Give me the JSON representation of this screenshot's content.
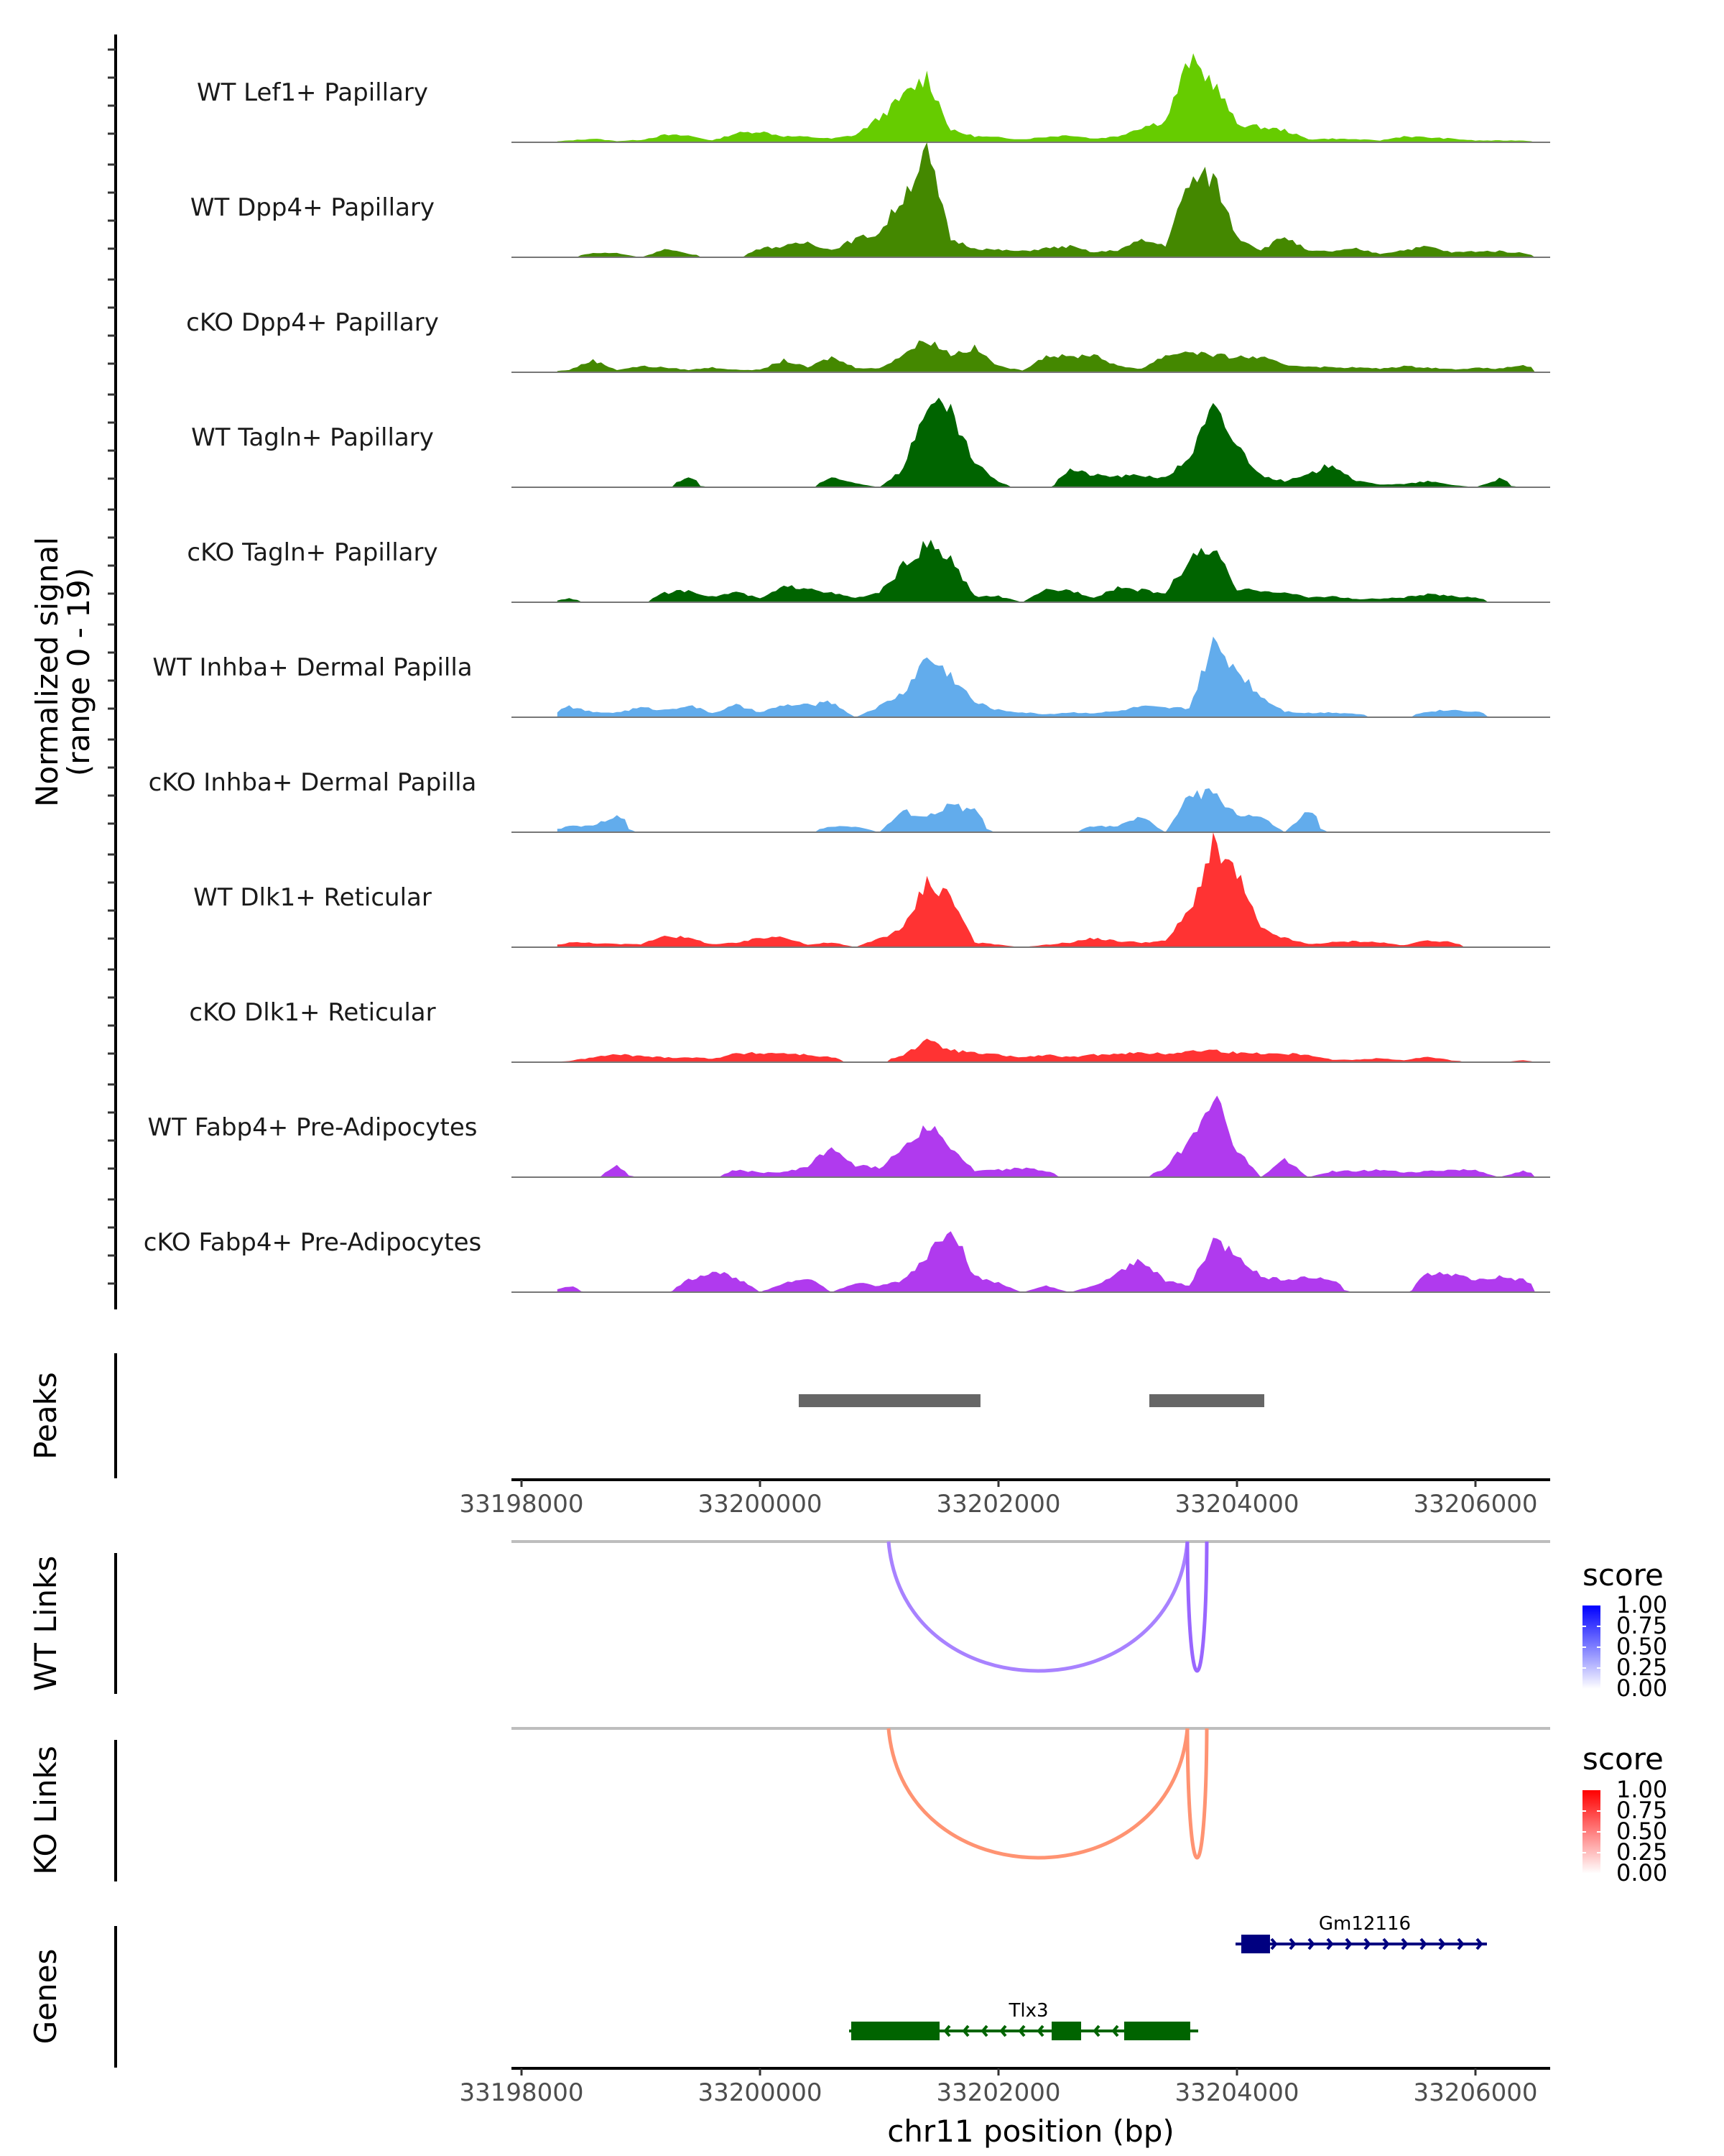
{
  "chart_data": {
    "type": "area",
    "title": "",
    "region": "chr11:33197900-33206100",
    "xlabel": "chr11 position (bp)",
    "xlim": [
      33197900,
      33206100
    ],
    "x_ticks": [
      33198000,
      33200000,
      33202000,
      33204000,
      33206000
    ],
    "x_tick_labels": [
      "33198000",
      "33200000",
      "33202000",
      "33204000",
      "33206000"
    ],
    "coverage": {
      "ylabel_line1": "Normalized signal",
      "ylabel_line2": "(range 0 - 19)",
      "ylim": [
        0,
        19
      ],
      "bin_start": 33198400,
      "bin_size": 200,
      "tracks": [
        {
          "name": "WT Lef1+ Papillary",
          "color": "#66CC00",
          "values": [
            0.3,
            0.6,
            0.2,
            0.4,
            1.2,
            1.1,
            0.3,
            1.5,
            1.8,
            1.0,
            0.9,
            0.6,
            1.2,
            4.0,
            7.5,
            11.0,
            2.0,
            1.0,
            0.8,
            0.5,
            0.9,
            1.2,
            0.6,
            1.0,
            2.5,
            3.5,
            13.5,
            10.0,
            3.0,
            2.5,
            2.0,
            0.5,
            0.6,
            0.5,
            0.3,
            1.0,
            0.8,
            0.6,
            0.3,
            0.3,
            0.3
          ]
        },
        {
          "name": "WT Dpp4+ Papillary",
          "color": "#448800",
          "values": [
            0,
            0.7,
            0.7,
            0,
            1.3,
            0.6,
            0,
            0,
            1.5,
            1.8,
            2.5,
            1.2,
            3.0,
            4.0,
            10.0,
            17.5,
            3.0,
            1.5,
            1.2,
            1.0,
            1.5,
            1.8,
            0.8,
            1.2,
            2.8,
            2.0,
            12.5,
            13.5,
            3.5,
            1.2,
            3.5,
            1.0,
            1.0,
            1.4,
            0.6,
            1.2,
            1.8,
            0.8,
            1.0,
            1.0,
            0.7
          ]
        },
        {
          "name": "cKO Dpp4+ Papillary",
          "color": "#448800",
          "values": [
            0.4,
            2.0,
            0.4,
            1.0,
            0.8,
            0.4,
            0.8,
            0.4,
            0.4,
            2.0,
            0.8,
            2.5,
            0.8,
            0.6,
            3.0,
            5.5,
            3.0,
            4.0,
            1.0,
            0.3,
            2.8,
            2.5,
            3.0,
            1.0,
            0.6,
            2.8,
            3.5,
            2.8,
            2.5,
            2.5,
            1.2,
            1.0,
            0.8,
            0.8,
            0.6,
            1.0,
            0.8,
            0.5,
            0.7,
            0.6,
            1.2
          ]
        },
        {
          "name": "WT Tagln+ Papillary",
          "color": "#006400",
          "values": [
            0,
            0,
            0,
            0,
            0,
            1.5,
            0,
            0,
            0,
            0,
            0,
            1.5,
            0.7,
            0,
            3.0,
            14.0,
            12.0,
            4.0,
            0.8,
            0,
            0,
            3.0,
            2.0,
            1.8,
            2.0,
            1.5,
            5.0,
            13.0,
            7.0,
            2.0,
            1.0,
            2.0,
            4.0,
            1.0,
            0.5,
            0.5,
            1.0,
            0.4,
            0,
            1.4,
            0
          ]
        },
        {
          "name": "cKO Tagln+ Papillary",
          "color": "#006400",
          "values": [
            0.6,
            0,
            0,
            0,
            1.5,
            2.0,
            0.9,
            1.7,
            0.6,
            2.5,
            2.5,
            1.5,
            0.7,
            1.5,
            6.0,
            9.5,
            7.0,
            1.0,
            1.0,
            0,
            2.0,
            2.0,
            0.8,
            2.5,
            2.0,
            1.5,
            7.0,
            9.0,
            2.0,
            2.0,
            1.6,
            0.8,
            1.0,
            0.5,
            0.6,
            0.8,
            1.3,
            1.0,
            0.8,
            0,
            0
          ]
        },
        {
          "name": "WT Inhba+ Dermal Papilla",
          "color": "#62ACEC",
          "values": [
            1.8,
            0.8,
            0.8,
            1.6,
            1.2,
            2.0,
            0.7,
            2.0,
            0.8,
            2.0,
            2.0,
            2.5,
            0,
            1.8,
            4.0,
            10.0,
            7.0,
            2.5,
            1.2,
            0.8,
            0.5,
            0.8,
            0.7,
            1.0,
            1.8,
            1.5,
            1.5,
            12.0,
            8.0,
            3.5,
            1.0,
            0.7,
            0.8,
            0.6,
            0,
            0,
            1.0,
            1.2,
            1.0,
            0,
            0
          ]
        },
        {
          "name": "cKO Inhba+ Dermal Papilla",
          "color": "#62ACEC",
          "values": [
            1.0,
            1.0,
            3.0,
            0,
            0,
            0,
            0,
            0,
            0,
            0,
            0,
            1.0,
            1.0,
            0,
            3.5,
            2.5,
            4.5,
            3.5,
            0,
            0,
            0,
            0,
            1.0,
            1.0,
            2.5,
            0,
            6.0,
            6.5,
            3.0,
            2.5,
            0,
            3.5,
            0,
            0,
            0,
            0,
            0,
            0,
            0,
            0,
            0
          ]
        },
        {
          "name": "WT Dlk1+ Reticular",
          "color": "#FF3333",
          "values": [
            0.8,
            0.7,
            0.5,
            0.5,
            2.0,
            1.5,
            0.5,
            0.7,
            1.5,
            1.8,
            0.4,
            0.8,
            0,
            1.5,
            3.0,
            11.0,
            8.5,
            0.8,
            0.4,
            0,
            0.4,
            0.8,
            1.5,
            1.0,
            0.8,
            1.0,
            6.0,
            16.5,
            12.0,
            3.0,
            1.5,
            0.5,
            0.8,
            1.0,
            0.8,
            0.3,
            1.2,
            0.8,
            0,
            0,
            0
          ]
        },
        {
          "name": "cKO Dlk1+ Reticular",
          "color": "#FF3333",
          "values": [
            0.2,
            0.8,
            1.3,
            1.0,
            0.8,
            0.8,
            0.6,
            1.4,
            1.5,
            1.5,
            1.2,
            0.8,
            0,
            0,
            1.2,
            3.5,
            2.0,
            1.5,
            1.2,
            0.8,
            1.2,
            0.8,
            1.2,
            1.5,
            1.5,
            1.4,
            1.8,
            2.0,
            1.5,
            1.5,
            1.4,
            1.3,
            0.4,
            0.4,
            0.7,
            0.3,
            0.9,
            0.3,
            0,
            0,
            0.3
          ]
        },
        {
          "name": "WT Fabp4+ Pre-Adipocytes",
          "color": "#B03AEE",
          "values": [
            0,
            0,
            1.8,
            0,
            0,
            0,
            0,
            1.2,
            0.8,
            0.8,
            1.8,
            5.0,
            2.0,
            1.5,
            5.0,
            9.0,
            5.0,
            1.0,
            1.2,
            1.5,
            1.0,
            0,
            0,
            0,
            0,
            1.5,
            6.0,
            14.0,
            4.5,
            0,
            3.0,
            0,
            1.0,
            1.0,
            1.2,
            0.8,
            1.0,
            1.2,
            1.2,
            0,
            1.0
          ]
        },
        {
          "name": "cKO Fabp4+ Pre-Adipocytes",
          "color": "#B03AEE",
          "values": [
            1.0,
            0,
            0,
            0,
            0,
            2.0,
            3.5,
            2.5,
            0,
            1.5,
            2.5,
            0,
            1.5,
            1.0,
            2.0,
            6.0,
            11.5,
            2.5,
            1.5,
            0,
            1.0,
            0,
            1.0,
            3.0,
            5.5,
            2.0,
            1.0,
            8.5,
            6.5,
            2.5,
            2.2,
            2.5,
            2.0,
            0,
            0,
            0,
            3.0,
            3.0,
            2.0,
            2.5,
            2.0
          ]
        }
      ]
    },
    "peaks": {
      "title": "Peaks",
      "color": "#666666",
      "regions": [
        [
          33200325,
          33201849
        ],
        [
          33203265,
          33204229
        ]
      ]
    },
    "links": [
      {
        "title": "WT Links",
        "legend_title": "score",
        "low_color": "#FFFFFF",
        "high_color": "#0000FF",
        "legend_ticks": [
          "1.00",
          "0.75",
          "0.50",
          "0.25",
          "0.00"
        ],
        "arcs": [
          {
            "start": 33201078,
            "end": 33203584,
            "score": 0.55,
            "color": "#A882FF"
          },
          {
            "start": 33203584,
            "end": 33203747,
            "score": 0.6,
            "color": "#9966FF"
          }
        ]
      },
      {
        "title": "KO Links",
        "legend_title": "score",
        "low_color": "#FFFFFF",
        "high_color": "#FF0000",
        "legend_ticks": [
          "1.00",
          "0.75",
          "0.50",
          "0.25",
          "0.00"
        ],
        "arcs": [
          {
            "start": 33201078,
            "end": 33203584,
            "score": 0.45,
            "color": "#FF9372"
          },
          {
            "start": 33203584,
            "end": 33203747,
            "score": 0.45,
            "color": "#FF9372"
          }
        ]
      }
    ],
    "genes": {
      "title": "Genes",
      "items": [
        {
          "name": "Gm12116",
          "strand": "+",
          "color": "#000080",
          "start": 33203988,
          "end": 33206096,
          "exons": [
            [
              33204036,
              33204277
            ]
          ]
        },
        {
          "name": "Tlx3",
          "strand": "-",
          "color": "#006400",
          "start": 33200747,
          "end": 33203675,
          "exons": [
            [
              33200765,
              33201506
            ],
            [
              33202446,
              33202693
            ],
            [
              33203054,
              33203608
            ]
          ]
        }
      ]
    }
  }
}
